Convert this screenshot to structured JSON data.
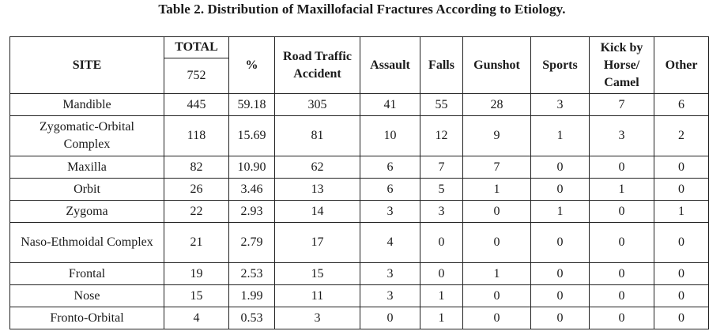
{
  "caption": "Table 2. Distribution of Maxillofacial Fractures According to Etiology.",
  "headers": {
    "site": "SITE",
    "total": "TOTAL",
    "total_value": "752",
    "percent": "%",
    "road_traffic_accident": "Road Traffic Accident",
    "assault": "Assault",
    "falls": "Falls",
    "gunshot": "Gunshot",
    "sports": "Sports",
    "kick_by_horse_camel": "Kick by Horse/ Camel",
    "other": "Other"
  },
  "rows": [
    {
      "site": "Mandible",
      "total": "445",
      "percent": "59.18",
      "rta": "305",
      "assault": "41",
      "falls": "55",
      "gunshot": "28",
      "sports": "3",
      "kick": "7",
      "other": "6"
    },
    {
      "site": "Zygomatic-Orbital Complex",
      "total": "118",
      "percent": "15.69",
      "rta": "81",
      "assault": "10",
      "falls": "12",
      "gunshot": "9",
      "sports": "1",
      "kick": "3",
      "other": "2"
    },
    {
      "site": "Maxilla",
      "total": "82",
      "percent": "10.90",
      "rta": "62",
      "assault": "6",
      "falls": "7",
      "gunshot": "7",
      "sports": "0",
      "kick": "0",
      "other": "0"
    },
    {
      "site": "Orbit",
      "total": "26",
      "percent": "3.46",
      "rta": "13",
      "assault": "6",
      "falls": "5",
      "gunshot": "1",
      "sports": "0",
      "kick": "1",
      "other": "0"
    },
    {
      "site": "Zygoma",
      "total": "22",
      "percent": "2.93",
      "rta": "14",
      "assault": "3",
      "falls": "3",
      "gunshot": "0",
      "sports": "1",
      "kick": "0",
      "other": "1"
    },
    {
      "site": "Naso-Ethmoidal Complex",
      "total": "21",
      "percent": "2.79",
      "rta": "17",
      "assault": "4",
      "falls": "0",
      "gunshot": "0",
      "sports": "0",
      "kick": "0",
      "other": "0"
    },
    {
      "site": "Frontal",
      "total": "19",
      "percent": "2.53",
      "rta": "15",
      "assault": "3",
      "falls": "0",
      "gunshot": "1",
      "sports": "0",
      "kick": "0",
      "other": "0"
    },
    {
      "site": "Nose",
      "total": "15",
      "percent": "1.99",
      "rta": "11",
      "assault": "3",
      "falls": "1",
      "gunshot": "0",
      "sports": "0",
      "kick": "0",
      "other": "0"
    },
    {
      "site": "Fronto-Orbital",
      "total": "4",
      "percent": "0.53",
      "rta": "3",
      "assault": "0",
      "falls": "1",
      "gunshot": "0",
      "sports": "0",
      "kick": "0",
      "other": "0"
    }
  ]
}
